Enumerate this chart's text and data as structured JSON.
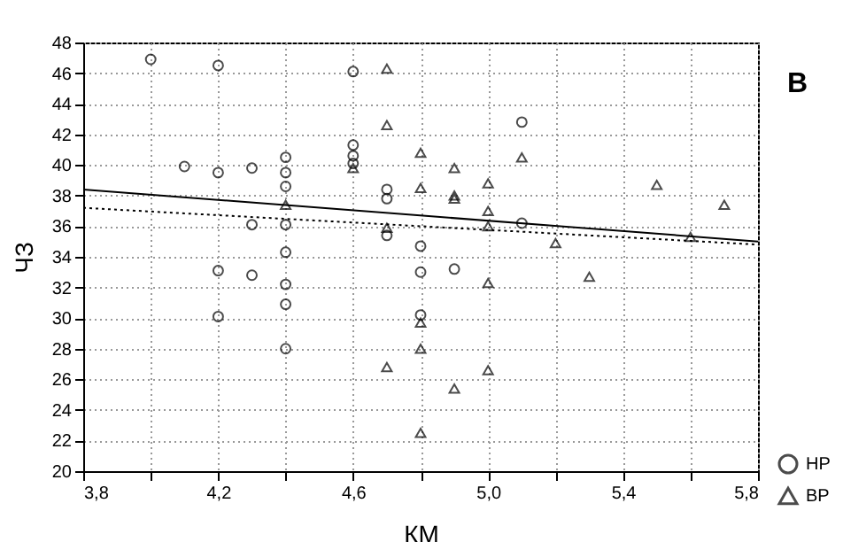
{
  "chart_data": {
    "type": "scatter",
    "title": "B",
    "xlabel": "КМ",
    "ylabel": "ЧЗ",
    "xlim": [
      3.8,
      5.8
    ],
    "ylim": [
      20,
      48
    ],
    "xticks": [
      {
        "value": 3.8,
        "label": "3,8"
      },
      {
        "value": 4.0,
        "label": null
      },
      {
        "value": 4.2,
        "label": "4,2"
      },
      {
        "value": 4.4,
        "label": null
      },
      {
        "value": 4.6,
        "label": "4,6"
      },
      {
        "value": 4.8,
        "label": null
      },
      {
        "value": 5.0,
        "label": "5,0"
      },
      {
        "value": 5.2,
        "label": null
      },
      {
        "value": 5.4,
        "label": "5,4"
      },
      {
        "value": 5.6,
        "label": null
      },
      {
        "value": 5.8,
        "label": "5,8"
      }
    ],
    "yticks": [
      20,
      22,
      24,
      26,
      28,
      30,
      32,
      34,
      36,
      38,
      40,
      42,
      44,
      46,
      48
    ],
    "grid": true,
    "legend": "bottom right",
    "series": [
      {
        "name": "HP",
        "color": "#000000",
        "marker": "circle",
        "x": [
          4.0,
          4.2,
          4.6,
          4.1,
          4.2,
          4.3,
          4.4,
          4.4,
          4.4,
          4.4,
          4.4,
          4.6,
          4.6,
          4.6,
          4.7,
          4.7,
          4.7,
          4.3,
          4.2,
          4.3,
          4.8,
          4.8,
          4.4,
          4.4,
          4.2,
          4.4,
          4.8,
          5.1,
          4.9,
          5.1
        ],
        "values": [
          46.9,
          46.5,
          46.1,
          39.9,
          39.5,
          39.8,
          40.5,
          39.5,
          38.6,
          36.1,
          34.3,
          41.3,
          40.6,
          40.1,
          38.4,
          37.8,
          35.4,
          36.1,
          33.1,
          32.8,
          34.7,
          33.0,
          32.2,
          30.9,
          30.1,
          28.0,
          30.2,
          42.8,
          33.2,
          36.2
        ]
      },
      {
        "name": "BP",
        "color": "#000000",
        "marker": "triangle",
        "x": [
          4.7,
          4.7,
          4.6,
          4.8,
          4.8,
          4.4,
          4.7,
          4.9,
          5.1,
          4.9,
          4.9,
          5.0,
          5.0,
          5.0,
          5.2,
          5.5,
          5.7,
          5.6,
          5.3,
          5.0,
          4.8,
          4.8,
          5.0,
          4.9,
          4.8,
          4.7
        ],
        "values": [
          46.3,
          42.6,
          39.8,
          40.8,
          38.5,
          37.4,
          35.9,
          39.8,
          40.5,
          38.0,
          37.8,
          38.8,
          37.0,
          36.0,
          34.9,
          38.7,
          37.4,
          35.3,
          32.7,
          32.3,
          29.7,
          28.0,
          26.6,
          25.4,
          22.5,
          26.8
        ]
      },
      {
        "type": "line",
        "color": "#000000",
        "line_style": "solid",
        "marker": "none",
        "x": [
          3.8,
          5.8
        ],
        "values": [
          38.4,
          35.0
        ]
      },
      {
        "type": "line",
        "color": "#000000",
        "line_style": "dotted",
        "marker": "none",
        "x": [
          3.8,
          5.8
        ],
        "values": [
          37.2,
          34.8
        ]
      }
    ]
  }
}
